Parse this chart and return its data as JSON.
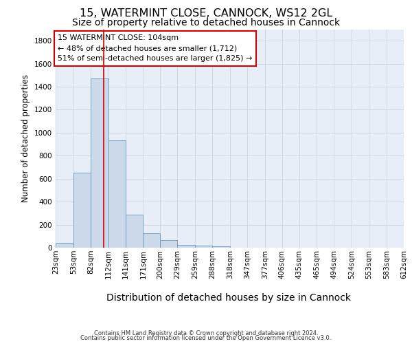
{
  "title1": "15, WATERMINT CLOSE, CANNOCK, WS12 2GL",
  "title2": "Size of property relative to detached houses in Cannock",
  "xlabel": "Distribution of detached houses by size in Cannock",
  "ylabel": "Number of detached properties",
  "footer1": "Contains HM Land Registry data © Crown copyright and database right 2024.",
  "footer2": "Contains public sector information licensed under the Open Government Licence v3.0.",
  "bin_edges": [
    23,
    53,
    82,
    112,
    141,
    171,
    200,
    229,
    259,
    288,
    318,
    347,
    377,
    406,
    435,
    465,
    494,
    524,
    553,
    583,
    612
  ],
  "bar_heights": [
    40,
    650,
    1470,
    935,
    290,
    125,
    65,
    25,
    15,
    10,
    0,
    0,
    0,
    0,
    0,
    0,
    0,
    0,
    0,
    0
  ],
  "bar_color": "#ccd9ea",
  "bar_edge_color": "#6699bb",
  "grid_color": "#c8cdd6",
  "background_color": "#e8eef7",
  "vline_x": 104,
  "vline_color": "#cc0000",
  "annotation_line1": "15 WATERMINT CLOSE: 104sqm",
  "annotation_line2": "← 48% of detached houses are smaller (1,712)",
  "annotation_line3": "51% of semi-detached houses are larger (1,825) →",
  "annotation_box_edgecolor": "#cc0000",
  "ylim": [
    0,
    1900
  ],
  "yticks": [
    0,
    200,
    400,
    600,
    800,
    1000,
    1200,
    1400,
    1600,
    1800
  ],
  "title1_fontsize": 11.5,
  "title2_fontsize": 10,
  "xlabel_fontsize": 10,
  "ylabel_fontsize": 8.5,
  "tick_fontsize": 7.5,
  "annotation_fontsize": 8,
  "footer_fontsize": 6
}
